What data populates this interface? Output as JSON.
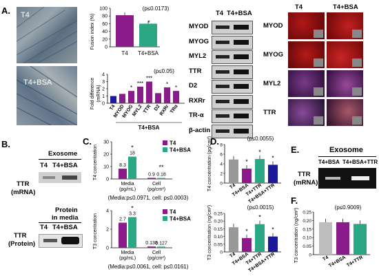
{
  "panels": {
    "a": "A.",
    "b": "B.",
    "c": "C.",
    "d": "D.",
    "e": "E.",
    "f": "F."
  },
  "colors": {
    "purple": "#8b1a8b",
    "green": "#2ba883",
    "darkgreen": "#0a6b55",
    "blue": "#1a1a99",
    "gray": "#bdbdbd",
    "blot": "#111111"
  },
  "A": {
    "micro_labels": [
      "T4",
      "T4+BSA"
    ],
    "fusion": {
      "ylabel": "Fusion index (%)",
      "pval": "(p≤0.0173)",
      "yticks": [
        "0",
        "20",
        "40",
        "60",
        "80",
        "100"
      ],
      "categories": [
        "T4",
        "T4+BSA"
      ],
      "star": "*"
    },
    "fold": {
      "ylabel": "Fold difference (mRNA)",
      "pval": "(p≤0.05)",
      "yticks": [
        "0",
        "1",
        "2",
        "3",
        "4"
      ],
      "categories": [
        "T4",
        "MYOD",
        "MYOG",
        "MYL2",
        "TTR",
        "D2",
        "RXRr",
        "TRα"
      ],
      "group": "T4+BSA",
      "stars": [
        "",
        "",
        "*",
        "***",
        "***",
        "",
        "*",
        "*"
      ]
    },
    "wb": {
      "header": [
        "T4",
        "T4+BSA"
      ],
      "rows": [
        "MYOD",
        "MYOG",
        "MYL2",
        "TTR",
        "D2",
        "RXRr",
        "TR-α",
        "β-actin"
      ]
    },
    "if": {
      "header": [
        "T4",
        "T4+BSA"
      ],
      "rows": [
        "MYOD",
        "MYOG",
        "MYL2",
        "TTR"
      ]
    }
  },
  "B": {
    "exosome": "Exosome",
    "lanes": [
      "T4",
      "T4+BSA"
    ],
    "ttr_mrna": [
      "TTR",
      "(mRNA)"
    ],
    "protein_media": [
      "Protein",
      "in media"
    ],
    "ttr_protein": [
      "TTR",
      "(Protein)"
    ]
  },
  "C": {
    "legend": [
      "T4",
      "T4+BSA"
    ],
    "t4": {
      "ylabel": "T4 concentration",
      "yticks": [
        "0",
        "10",
        "20",
        "30"
      ],
      "groups": [
        "Media",
        "Cell"
      ],
      "units": [
        "(pg/mL)",
        "(pg/cm²)"
      ],
      "values_labels": [
        "8.3",
        "18",
        "0.9",
        "0.18"
      ],
      "stars": [
        "*",
        "**"
      ],
      "pval": "(Media:p≤0.0971, cell: p≤0.0003)"
    },
    "t3": {
      "ylabel": "T3 concentration",
      "yticks": [
        "0",
        "2",
        "4"
      ],
      "groups": [
        "Media",
        "Cell"
      ],
      "units": [
        "(pg/mL)",
        "(pg/cm²)"
      ],
      "values_labels": [
        "2.7",
        "3.3",
        "0.138",
        "0.127"
      ],
      "stars": [
        "*"
      ],
      "pval": "(Media:p≤0.0061, cell: p≤0.0161)"
    }
  },
  "D": {
    "t4": {
      "pval": "(p≤0.0055)",
      "ylabel": "T4 concentration (pg/cm²)",
      "yticks": [
        "0",
        "2",
        "4",
        "6",
        "8"
      ]
    },
    "t3": {
      "pval": "(p≤0.0015)",
      "ylabel": "T3 concentration (ng/cm²)",
      "yticks": [
        "0",
        "0.05",
        "0.10",
        "0.15",
        "0.20",
        "0.25"
      ]
    },
    "categories": [
      "T4",
      "T4+BSA",
      "T4+TTR",
      "T4+BSA+TTR"
    ],
    "stars": [
      "",
      "*",
      "*",
      "*"
    ]
  },
  "E": {
    "exosome": "Exosome",
    "lanes": [
      "T4+BSA",
      "T4+BSA+TTR"
    ],
    "ttr": [
      "TTR",
      "(mRNA)"
    ]
  },
  "F": {
    "pval": "(p≤0.9009)",
    "ylabel": "T3 concentration (ng/cm²)",
    "yticks": [
      "0",
      "0.05",
      "0.10",
      "0.15",
      "0.20",
      "0.25"
    ],
    "categories": [
      "T4",
      "T4+BSA",
      "T4+TTR"
    ]
  },
  "chart_data": [
    {
      "type": "bar",
      "categories": [
        "T4",
        "T4+BSA"
      ],
      "values": [
        82,
        60
      ],
      "ylabel": "Fusion index (%)",
      "ylim": [
        0,
        100
      ]
    },
    {
      "type": "bar",
      "categories": [
        "T4",
        "MYOD",
        "MYOG",
        "MYL2",
        "TTR",
        "D2",
        "RXRr",
        "TRα"
      ],
      "values": [
        1.0,
        1.3,
        1.7,
        2.3,
        3.0,
        1.4,
        2.2,
        1.7
      ],
      "ylabel": "Fold difference (mRNA)",
      "ylim": [
        0,
        4
      ]
    },
    {
      "type": "bar",
      "categories": [
        "Media",
        "Cell"
      ],
      "series": [
        {
          "name": "T4",
          "values": [
            8.3,
            0.9
          ]
        },
        {
          "name": "T4+BSA",
          "values": [
            18,
            0.18
          ]
        }
      ],
      "ylabel": "T4 concentration",
      "ylim": [
        0,
        30
      ]
    },
    {
      "type": "bar",
      "categories": [
        "Media",
        "Cell"
      ],
      "series": [
        {
          "name": "T4",
          "values": [
            2.7,
            0.138
          ]
        },
        {
          "name": "T4+BSA",
          "values": [
            3.3,
            0.127
          ]
        }
      ],
      "ylabel": "T3 concentration",
      "ylim": [
        0,
        4
      ]
    },
    {
      "type": "bar",
      "categories": [
        "T4",
        "T4+BSA",
        "T4+TTR",
        "T4+BSA+TTR"
      ],
      "values": [
        4.9,
        3.0,
        5.0,
        3.8
      ],
      "ylabel": "T4 concentration (pg/cm²)",
      "ylim": [
        0,
        8
      ]
    },
    {
      "type": "bar",
      "categories": [
        "T4",
        "T4+BSA",
        "T4+TTR",
        "T4+BSA+TTR"
      ],
      "values": [
        0.16,
        0.09,
        0.18,
        0.1
      ],
      "ylabel": "T3 concentration (ng/cm²)",
      "ylim": [
        0,
        0.25
      ]
    },
    {
      "type": "bar",
      "categories": [
        "T4",
        "T4+BSA",
        "T4+TTR"
      ],
      "values": [
        0.19,
        0.19,
        0.18
      ],
      "ylabel": "T3 concentration (ng/cm²)",
      "ylim": [
        0,
        0.25
      ]
    }
  ]
}
